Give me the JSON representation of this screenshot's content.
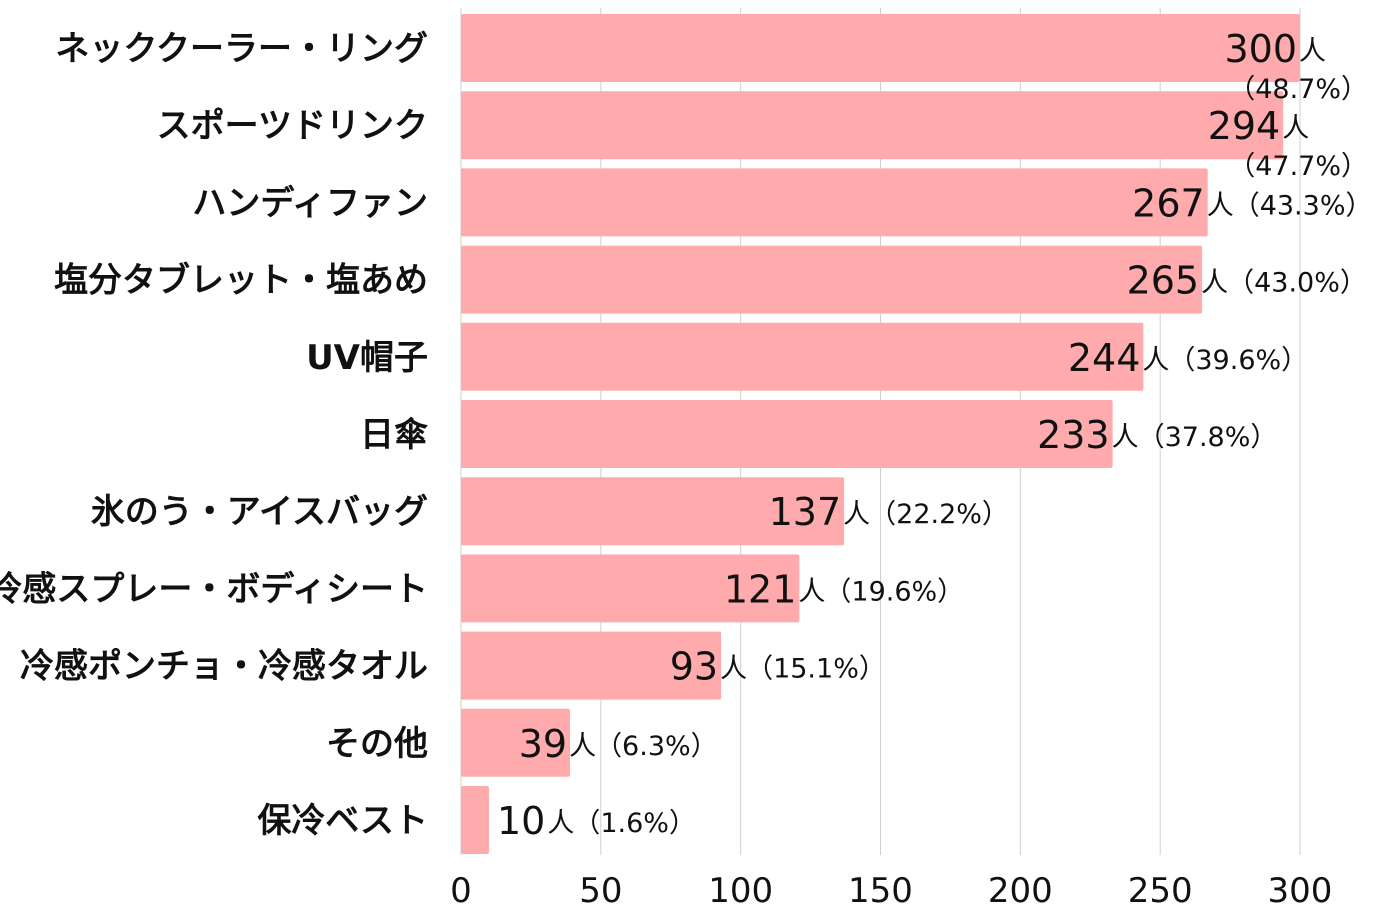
{
  "chart_data": {
    "type": "bar",
    "orientation": "horizontal",
    "categories": [
      "ネッククーラー・リング",
      "スポーツドリンク",
      "ハンディファン",
      "塩分タブレット・塩あめ",
      "UV帽子",
      "日傘",
      "氷のう・アイスバッグ",
      "冷感スプレー・ボディシート",
      "冷感ポンチョ・冷感タオル",
      "その他",
      "保冷ベスト"
    ],
    "values": [
      300,
      294,
      267,
      265,
      244,
      233,
      137,
      121,
      93,
      39,
      10
    ],
    "unit": "人",
    "percent_labels": [
      "（48.7%）",
      "（47.7%）",
      "（43.3%）",
      "（43.0%）",
      "（39.6%）",
      "（37.8%）",
      "（22.2%）",
      "（19.6%）",
      "（15.1%）",
      "（6.3%）",
      "（1.6%）"
    ],
    "xlim": [
      0,
      300
    ],
    "xticks": [
      0,
      50,
      100,
      150,
      200,
      250,
      300
    ],
    "grid": "vertical",
    "title": "",
    "xlabel": "",
    "ylabel": "",
    "bar_color": "#ffabad",
    "grid_color": "#cfcfcf"
  }
}
